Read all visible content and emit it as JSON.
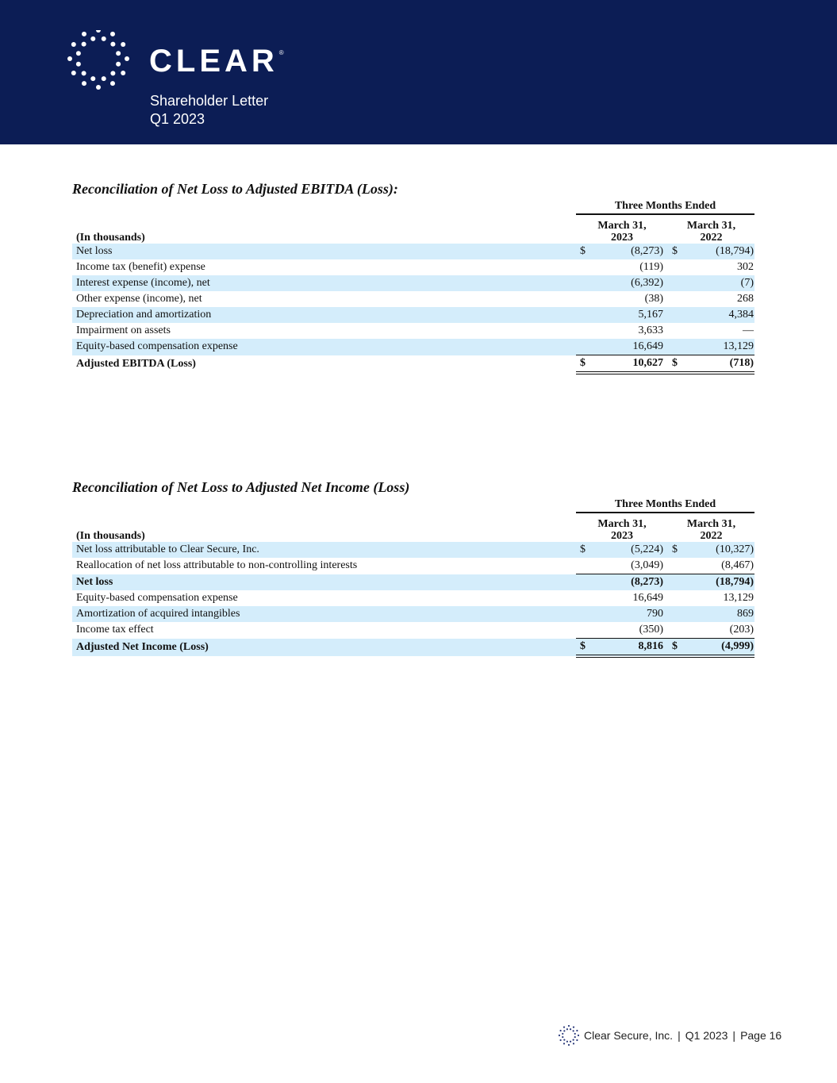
{
  "header": {
    "brand": "CLEAR",
    "registered": "®",
    "subtitle_line1": "Shareholder Letter",
    "subtitle_line2": "Q1 2023"
  },
  "table1": {
    "title": "Reconciliation of Net Loss to Adjusted EBITDA (Loss):",
    "period_header": "Three Months Ended",
    "units": "(In thousands)",
    "col1": "March 31, 2023",
    "col2": "March 31, 2022",
    "rows": [
      {
        "label": "Net loss",
        "c1": "$",
        "v1": "(8,273)",
        "c2": "$",
        "v2": "(18,794)"
      },
      {
        "label": "Income tax (benefit) expense",
        "c1": "",
        "v1": "(119)",
        "c2": "",
        "v2": "302"
      },
      {
        "label": "Interest expense (income), net",
        "c1": "",
        "v1": "(6,392)",
        "c2": "",
        "v2": "(7)"
      },
      {
        "label": "Other expense (income), net",
        "c1": "",
        "v1": "(38)",
        "c2": "",
        "v2": "268"
      },
      {
        "label": "Depreciation and amortization",
        "c1": "",
        "v1": "5,167",
        "c2": "",
        "v2": "4,384"
      },
      {
        "label": "Impairment on assets",
        "c1": "",
        "v1": "3,633",
        "c2": "",
        "v2": "—"
      },
      {
        "label": "Equity-based compensation expense",
        "c1": "",
        "v1": "16,649",
        "c2": "",
        "v2": "13,129"
      },
      {
        "label": "Adjusted EBITDA (Loss)",
        "c1": "$",
        "v1": "10,627",
        "c2": "$",
        "v2": "(718)"
      }
    ]
  },
  "table2": {
    "title": "Reconciliation of Net Loss to Adjusted Net Income (Loss)",
    "period_header": "Three Months Ended",
    "units": "(In thousands)",
    "col1": "March 31, 2023",
    "col2": "March 31, 2022",
    "rows": [
      {
        "label": "Net loss attributable to Clear Secure, Inc.",
        "c1": "$",
        "v1": "(5,224)",
        "c2": "$",
        "v2": "(10,327)"
      },
      {
        "label": "Reallocation of net loss attributable to non-controlling interests",
        "c1": "",
        "v1": "(3,049)",
        "c2": "",
        "v2": "(8,467)"
      },
      {
        "label": "Net loss",
        "c1": "",
        "v1": "(8,273)",
        "c2": "",
        "v2": "(18,794)"
      },
      {
        "label": "Equity-based compensation expense",
        "c1": "",
        "v1": "16,649",
        "c2": "",
        "v2": "13,129"
      },
      {
        "label": "Amortization of acquired intangibles",
        "c1": "",
        "v1": "790",
        "c2": "",
        "v2": "869"
      },
      {
        "label": "Income tax effect",
        "c1": "",
        "v1": "(350)",
        "c2": "",
        "v2": "(203)"
      },
      {
        "label": "Adjusted Net Income (Loss)",
        "c1": "$",
        "v1": "8,816",
        "c2": "$",
        "v2": "(4,999)"
      }
    ]
  },
  "footer": {
    "company": "Clear Secure, Inc.",
    "period": "Q1 2023",
    "page": "Page 16"
  }
}
